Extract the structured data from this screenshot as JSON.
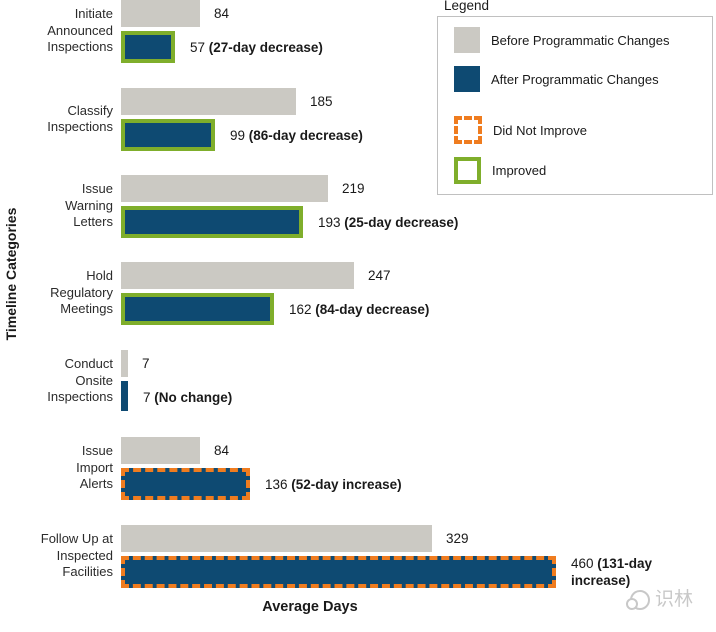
{
  "chart_data": {
    "type": "bar",
    "orientation": "horizontal",
    "xlabel": "Average Days",
    "ylabel": "Timeline Categories",
    "grid": false,
    "xlim": [
      0,
      560
    ],
    "categories": [
      "Initiate Announced Inspections",
      "Classify Inspections",
      "Issue Warning Letters",
      "Hold Regulatory Meetings",
      "Conduct Onsite Inspections",
      "Issue Import Alerts",
      "Follow Up at Inspected Facilities"
    ],
    "series": [
      {
        "name": "Before Programmatic Changes",
        "color": "#cbc9c3",
        "values": [
          84,
          185,
          219,
          247,
          7,
          84,
          329
        ]
      },
      {
        "name": "After Programmatic Changes",
        "color": "#0e4a72",
        "values": [
          57,
          99,
          193,
          162,
          7,
          136,
          460
        ]
      }
    ],
    "rows": [
      {
        "label_lines": [
          "Initiate",
          "Announced",
          "Inspections"
        ],
        "before": 84,
        "before_label": "84",
        "after": 57,
        "after_label_value": "57",
        "after_label_note": "(27-day decrease)",
        "status": "improved"
      },
      {
        "label_lines": [
          "Classify",
          "Inspections"
        ],
        "before": 185,
        "before_label": "185",
        "after": 99,
        "after_label_value": "99",
        "after_label_note": "(86-day decrease)",
        "status": "improved"
      },
      {
        "label_lines": [
          "Issue",
          "Warning",
          "Letters"
        ],
        "before": 219,
        "before_label": "219",
        "after": 193,
        "after_label_value": "193",
        "after_label_note": "(25-day decrease)",
        "status": "improved"
      },
      {
        "label_lines": [
          "Hold",
          "Regulatory",
          "Meetings"
        ],
        "before": 247,
        "before_label": "247",
        "after": 162,
        "after_label_value": "162",
        "after_label_note": "(84-day decrease)",
        "status": "improved"
      },
      {
        "label_lines": [
          "Conduct",
          "Onsite",
          "Inspections"
        ],
        "before": 7,
        "before_label": "7",
        "after": 7,
        "after_label_value": "7",
        "after_label_note": "(No change)",
        "status": "none"
      },
      {
        "label_lines": [
          "Issue",
          "Import",
          "Alerts"
        ],
        "before": 84,
        "before_label": "84",
        "after": 136,
        "after_label_value": "136",
        "after_label_note": "(52-day increase)",
        "status": "not_improved"
      },
      {
        "label_lines": [
          "Follow Up at",
          "Inspected",
          "Facilities"
        ],
        "before": 329,
        "before_label": "329",
        "after": 460,
        "after_label_value": "460",
        "after_label_note": "(131-day increase)",
        "status": "not_improved"
      }
    ],
    "colors": {
      "before_fill": "#cbc9c3",
      "after_fill": "#0e4a72",
      "improved_outline": "#7fae2b",
      "not_improved_outline": "#ef7c1f"
    }
  },
  "legend": {
    "title": "Legend",
    "items": [
      {
        "label": "Before Programmatic Changes",
        "swatch": "before-fill"
      },
      {
        "label": "After Programmatic Changes",
        "swatch": "after-fill"
      },
      {
        "label": "Did Not Improve",
        "swatch": "dashed-outline"
      },
      {
        "label": "Improved",
        "swatch": "solid-outline"
      }
    ]
  },
  "watermark": {
    "text": "识林"
  }
}
